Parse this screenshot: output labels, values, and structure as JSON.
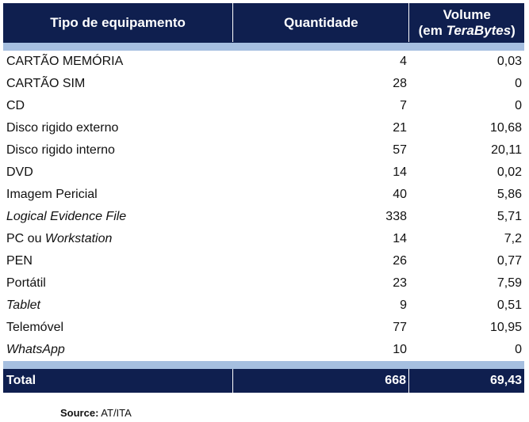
{
  "header": {
    "col1": "Tipo de equipamento",
    "col2": "Quantidade",
    "col3_line1": "Volume",
    "col3_line2_prefix": "(em ",
    "col3_line2_italic": "TeraBytes",
    "col3_line2_suffix": ")"
  },
  "rows": [
    {
      "type_plain": "CARTÃO MEMÓRIA",
      "type_italic": "",
      "qty": "4",
      "vol": "0,03"
    },
    {
      "type_plain": "CARTÃO SIM",
      "type_italic": "",
      "qty": "28",
      "vol": "0"
    },
    {
      "type_plain": "CD",
      "type_italic": "",
      "qty": "7",
      "vol": "0"
    },
    {
      "type_plain": "Disco rigido externo",
      "type_italic": "",
      "qty": "21",
      "vol": "10,68"
    },
    {
      "type_plain": "Disco rigido interno",
      "type_italic": "",
      "qty": "57",
      "vol": "20,11"
    },
    {
      "type_plain": "DVD",
      "type_italic": "",
      "qty": "14",
      "vol": "0,02"
    },
    {
      "type_plain": "Imagem Pericial",
      "type_italic": "",
      "qty": "40",
      "vol": "5,86"
    },
    {
      "type_plain": "",
      "type_italic": "Logical Evidence File",
      "qty": "338",
      "vol": "5,71"
    },
    {
      "type_plain": "PC ou ",
      "type_italic": "Workstation",
      "qty": "14",
      "vol": "7,2"
    },
    {
      "type_plain": "PEN",
      "type_italic": "",
      "qty": "26",
      "vol": "0,77"
    },
    {
      "type_plain": "Portátil",
      "type_italic": "",
      "qty": "23",
      "vol": "7,59"
    },
    {
      "type_plain": "",
      "type_italic": "Tablet",
      "qty": "9",
      "vol": "0,51"
    },
    {
      "type_plain": "Telemóvel",
      "type_italic": "",
      "qty": "77",
      "vol": "10,95"
    },
    {
      "type_plain": "",
      "type_italic": "WhatsApp",
      "qty": "10",
      "vol": "0"
    }
  ],
  "total": {
    "label": "Total",
    "qty": "668",
    "vol": "69,43"
  },
  "source": {
    "label": "Source:",
    "text": " AT/ITA"
  },
  "colors": {
    "header_bg": "#0f1f4f",
    "stripe": "#a6bfe0"
  }
}
